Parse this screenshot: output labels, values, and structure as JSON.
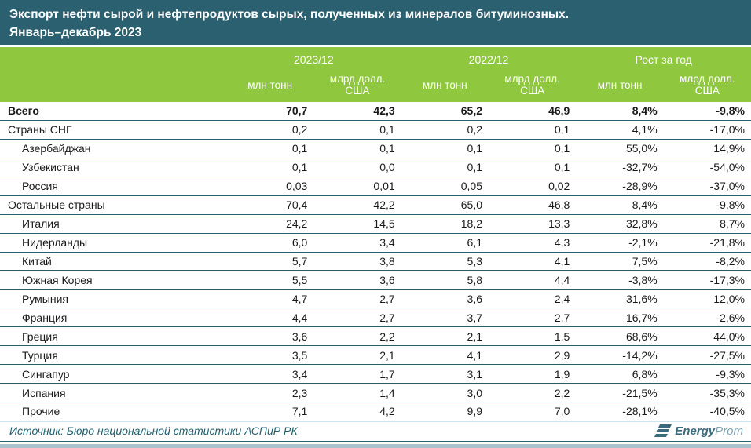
{
  "title": {
    "line1": "Экспорт нефти сырой и нефтепродуктов сырых, полученных из минералов битуминозных.",
    "line2": "Январь–декабрь 2023"
  },
  "chart_data": {
    "type": "table",
    "title": "Экспорт нефти сырой и нефтепродуктов сырых, полученных из минералов битуминозных. Январь–декабрь 2023",
    "column_groups": [
      "2023/12",
      "2022/12",
      "Рост за год"
    ],
    "sub_columns": [
      "млн тонн",
      "млрд долл. США",
      "млн тонн",
      "млрд долл. США",
      "млн тонн",
      "млрд долл. США"
    ],
    "rows": [
      {
        "label": "Всего",
        "emphasis": "total",
        "indent": false,
        "values": [
          "70,7",
          "42,3",
          "65,2",
          "46,9",
          "8,4%",
          "-9,8%"
        ]
      },
      {
        "label": "Страны СНГ",
        "emphasis": "group",
        "indent": false,
        "values": [
          "0,2",
          "0,1",
          "0,2",
          "0,1",
          "4,1%",
          "-17,0%"
        ]
      },
      {
        "label": "Азербайджан",
        "emphasis": "none",
        "indent": true,
        "values": [
          "0,1",
          "0,1",
          "0,1",
          "0,1",
          "55,0%",
          "14,9%"
        ]
      },
      {
        "label": "Узбекистан",
        "emphasis": "none",
        "indent": true,
        "values": [
          "0,1",
          "0,0",
          "0,1",
          "0,1",
          "-32,7%",
          "-54,0%"
        ]
      },
      {
        "label": "Россия",
        "emphasis": "none",
        "indent": true,
        "values": [
          "0,03",
          "0,01",
          "0,05",
          "0,02",
          "-28,9%",
          "-37,0%"
        ]
      },
      {
        "label": "Остальные страны",
        "emphasis": "group",
        "indent": false,
        "values": [
          "70,4",
          "42,2",
          "65,0",
          "46,8",
          "8,4%",
          "-9,8%"
        ]
      },
      {
        "label": "Италия",
        "emphasis": "none",
        "indent": true,
        "values": [
          "24,2",
          "14,5",
          "18,2",
          "13,3",
          "32,8%",
          "8,7%"
        ]
      },
      {
        "label": "Нидерланды",
        "emphasis": "none",
        "indent": true,
        "values": [
          "6,0",
          "3,4",
          "6,1",
          "4,3",
          "-2,1%",
          "-21,8%"
        ]
      },
      {
        "label": "Китай",
        "emphasis": "none",
        "indent": true,
        "values": [
          "5,7",
          "3,8",
          "5,3",
          "4,1",
          "7,5%",
          "-8,2%"
        ]
      },
      {
        "label": "Южная Корея",
        "emphasis": "none",
        "indent": true,
        "values": [
          "5,5",
          "3,6",
          "5,8",
          "4,4",
          "-3,8%",
          "-17,3%"
        ]
      },
      {
        "label": "Румыния",
        "emphasis": "none",
        "indent": true,
        "values": [
          "4,7",
          "2,7",
          "3,6",
          "2,4",
          "31,6%",
          "12,0%"
        ]
      },
      {
        "label": "Франция",
        "emphasis": "none",
        "indent": true,
        "values": [
          "4,4",
          "2,7",
          "3,7",
          "2,7",
          "16,7%",
          "-2,6%"
        ]
      },
      {
        "label": "Греция",
        "emphasis": "none",
        "indent": true,
        "values": [
          "3,6",
          "2,2",
          "2,1",
          "1,5",
          "68,6%",
          "44,0%"
        ]
      },
      {
        "label": "Турция",
        "emphasis": "none",
        "indent": true,
        "values": [
          "3,5",
          "2,1",
          "4,1",
          "2,9",
          "-14,2%",
          "-27,5%"
        ]
      },
      {
        "label": "Сингапур",
        "emphasis": "none",
        "indent": true,
        "values": [
          "3,4",
          "1,7",
          "3,1",
          "1,9",
          "6,8%",
          "-9,3%"
        ]
      },
      {
        "label": "Испания",
        "emphasis": "none",
        "indent": true,
        "values": [
          "2,3",
          "1,4",
          "3,0",
          "2,2",
          "-21,5%",
          "-35,3%"
        ]
      },
      {
        "label": "Прочие",
        "emphasis": "none",
        "indent": true,
        "values": [
          "7,1",
          "4,2",
          "9,9",
          "7,0",
          "-28,1%",
          "-40,5%"
        ]
      }
    ],
    "source": "Источник: Бюро национальной статистики АСПиР РК"
  },
  "footer": {
    "source_label": "Источник: Бюро национальной статистики АСПиР РК",
    "logo_bold": "Energy",
    "logo_light": "Prom"
  },
  "colors": {
    "title_bar": "#2a606f",
    "header_green": "#8fc73e",
    "row_line": "#2a5d6e",
    "source_text": "#20606e",
    "logo_dark": "#3c6b7d",
    "logo_light": "#7fa2b0",
    "bottom_bar": "#a9c2cc"
  }
}
